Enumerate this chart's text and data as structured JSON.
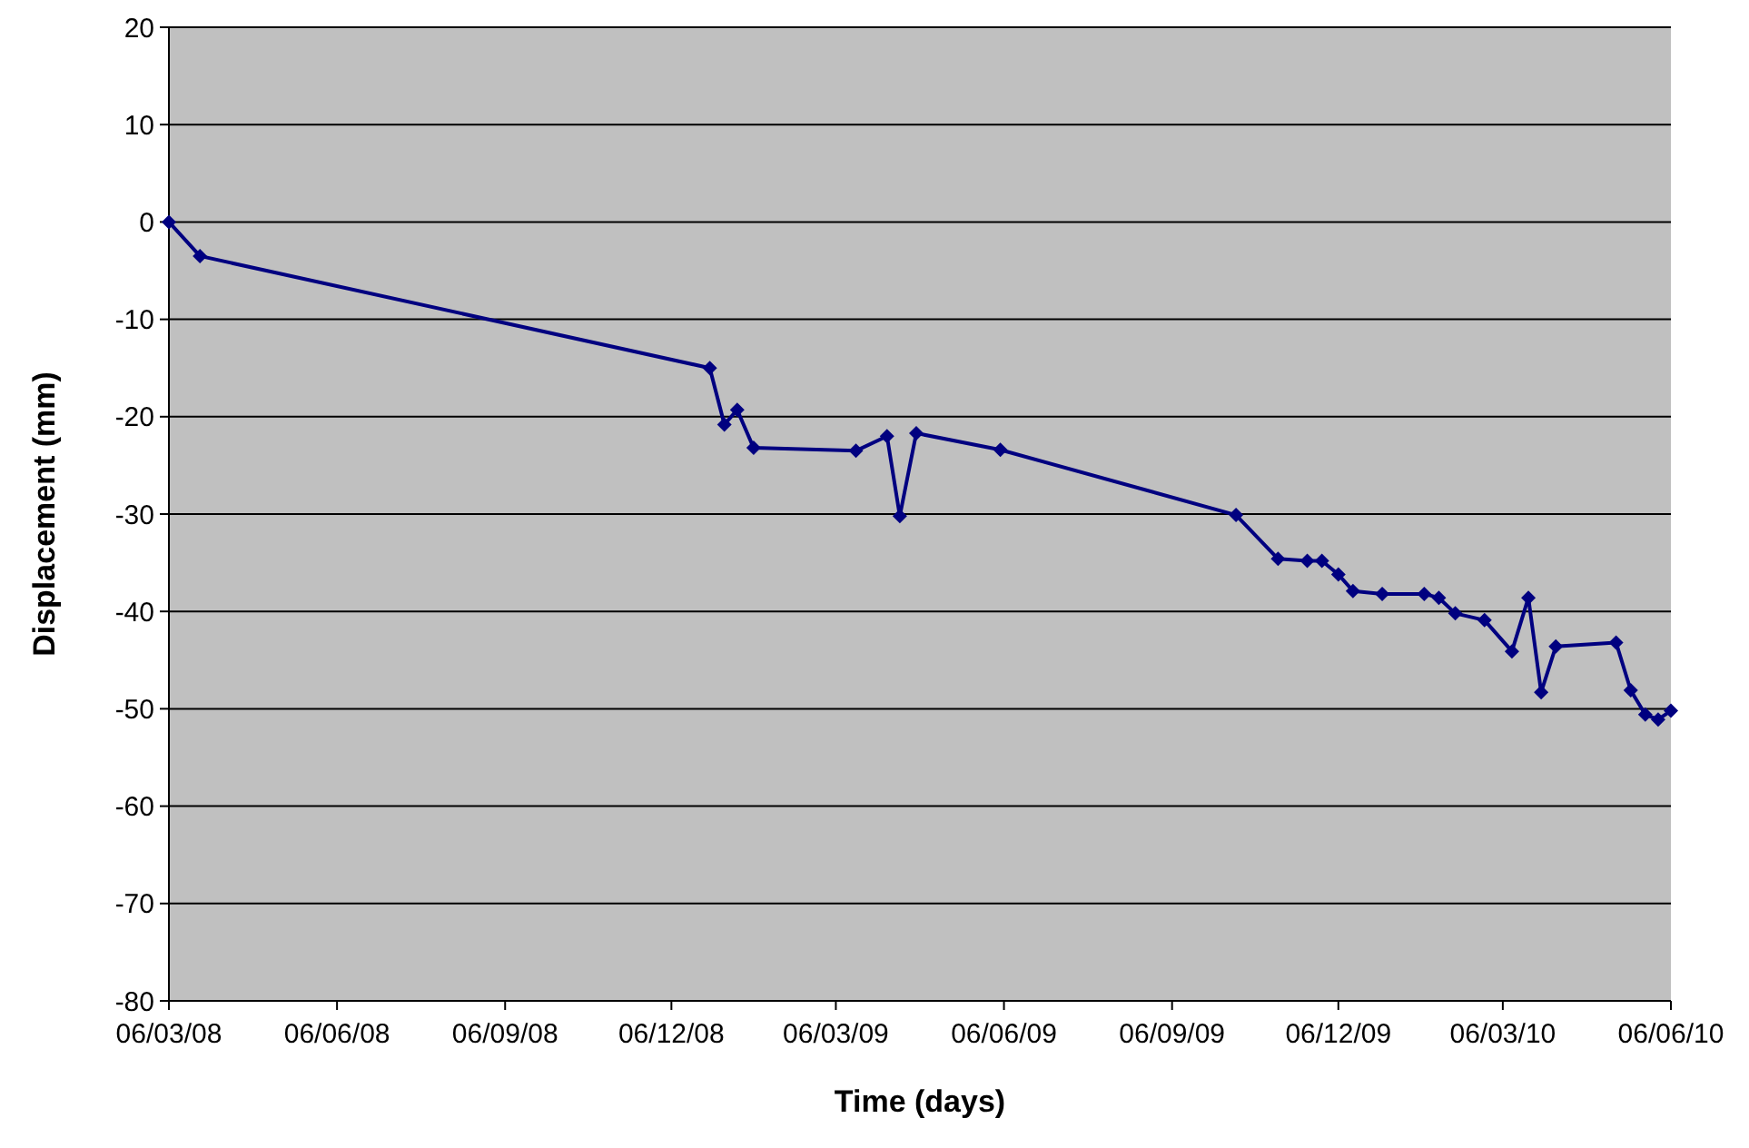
{
  "chart_data": {
    "type": "line",
    "xlabel": "Time (days)",
    "ylabel": "Displacement (mm)",
    "x": [
      "2008-03-06",
      "2008-03-23",
      "2008-12-27",
      "2009-01-04",
      "2009-01-11",
      "2009-01-20",
      "2009-03-17",
      "2009-04-03",
      "2009-04-10",
      "2009-04-19",
      "2009-06-04",
      "2009-10-11",
      "2009-11-03",
      "2009-11-19",
      "2009-11-27",
      "2009-12-06",
      "2009-12-14",
      "2009-12-30",
      "2010-01-22",
      "2010-01-30",
      "2010-02-08",
      "2010-02-24",
      "2010-03-11",
      "2010-03-20",
      "2010-03-27",
      "2010-04-04",
      "2010-05-07",
      "2010-05-15",
      "2010-05-23",
      "2010-05-30",
      "2010-06-06"
    ],
    "series": [
      {
        "color": "#000080",
        "values": [
          0,
          -3.5,
          -15,
          -20.8,
          -19.3,
          -23.2,
          -23.5,
          -22,
          -30.2,
          -21.7,
          -23.4,
          -30.1,
          -34.6,
          -34.8,
          -34.8,
          -36.2,
          -37.9,
          -38.2,
          -38.2,
          -38.6,
          -40.2,
          -40.9,
          -44.1,
          -38.6,
          -48.3,
          -43.6,
          -43.2,
          -48.1,
          -50.6,
          -51.1,
          -50.2
        ]
      }
    ],
    "xlim": [
      "2008-03-06",
      "2010-06-06"
    ],
    "xticks": [
      {
        "value": "2008-03-06",
        "label": "06/03/08"
      },
      {
        "value": "2008-06-06",
        "label": "06/06/08"
      },
      {
        "value": "2008-09-06",
        "label": "06/09/08"
      },
      {
        "value": "2008-12-06",
        "label": "06/12/08"
      },
      {
        "value": "2009-03-06",
        "label": "06/03/09"
      },
      {
        "value": "2009-06-06",
        "label": "06/06/09"
      },
      {
        "value": "2009-09-06",
        "label": "06/09/09"
      },
      {
        "value": "2009-12-06",
        "label": "06/12/09"
      },
      {
        "value": "2010-03-06",
        "label": "06/03/10"
      },
      {
        "value": "2010-06-06",
        "label": "06/06/10"
      }
    ],
    "ylim": [
      -80,
      20
    ],
    "yticks": [
      -80,
      -70,
      -60,
      -50,
      -40,
      -30,
      -20,
      -10,
      0,
      10,
      20
    ],
    "grid": "y",
    "marker": "diamond",
    "line_style": "solid"
  }
}
